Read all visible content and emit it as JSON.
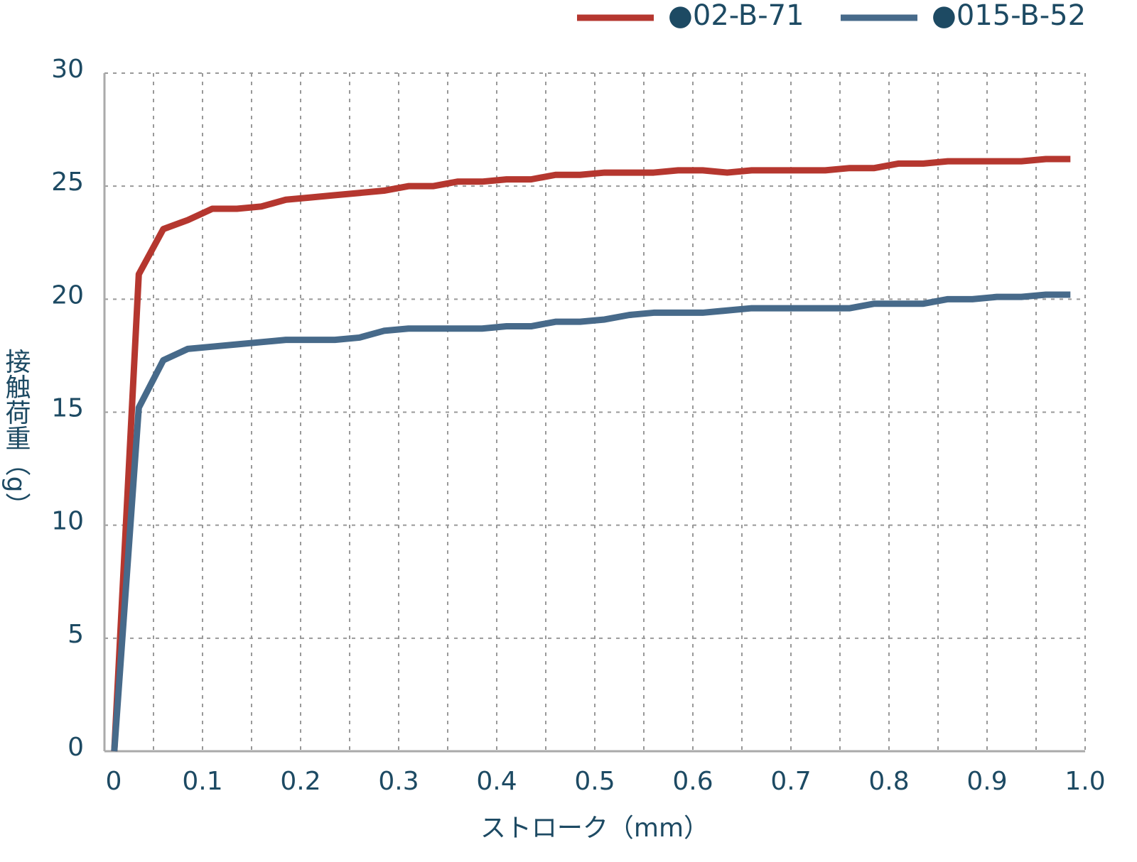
{
  "chart_data": {
    "type": "line",
    "x_label": "ストローク（mm）",
    "y_label": "接触荷重（g）",
    "x": [
      0.01,
      0.035,
      0.06,
      0.085,
      0.11,
      0.135,
      0.16,
      0.185,
      0.21,
      0.235,
      0.26,
      0.285,
      0.31,
      0.335,
      0.36,
      0.385,
      0.41,
      0.435,
      0.46,
      0.485,
      0.51,
      0.535,
      0.56,
      0.585,
      0.61,
      0.635,
      0.66,
      0.685,
      0.71,
      0.735,
      0.76,
      0.785,
      0.81,
      0.835,
      0.86,
      0.885,
      0.91,
      0.935,
      0.96,
      0.985
    ],
    "series": [
      {
        "name": "●02-B-71",
        "color": "#b5372f",
        "values": [
          0,
          21.1,
          23.1,
          23.5,
          24.0,
          24.0,
          24.1,
          24.4,
          24.5,
          24.6,
          24.7,
          24.8,
          25.0,
          25.0,
          25.2,
          25.2,
          25.3,
          25.3,
          25.5,
          25.5,
          25.6,
          25.6,
          25.6,
          25.7,
          25.7,
          25.6,
          25.7,
          25.7,
          25.7,
          25.7,
          25.8,
          25.8,
          26.0,
          26.0,
          26.1,
          26.1,
          26.1,
          26.1,
          26.2,
          26.2
        ]
      },
      {
        "name": "●015-B-52",
        "color": "#476a8a",
        "values": [
          0,
          15.2,
          17.3,
          17.8,
          17.9,
          18.0,
          18.1,
          18.2,
          18.2,
          18.2,
          18.3,
          18.6,
          18.7,
          18.7,
          18.7,
          18.7,
          18.8,
          18.8,
          19.0,
          19.0,
          19.1,
          19.3,
          19.4,
          19.4,
          19.4,
          19.5,
          19.6,
          19.6,
          19.6,
          19.6,
          19.6,
          19.8,
          19.8,
          19.8,
          20.0,
          20.0,
          20.1,
          20.1,
          20.2,
          20.2
        ]
      }
    ],
    "xlim": [
      0,
      1
    ],
    "ylim": [
      0,
      30
    ],
    "xticks": [
      0,
      0.1,
      0.2,
      0.3,
      0.4,
      0.5,
      0.6,
      0.7,
      0.8,
      0.9,
      {
        "value": 1,
        "label": "1.0"
      }
    ],
    "x_minor_ticks": [
      0.05,
      0.15,
      0.25,
      0.35,
      0.45,
      0.55,
      0.65,
      0.75,
      0.85,
      0.95
    ],
    "yticks": [
      0,
      5,
      10,
      15,
      20,
      25,
      30
    ],
    "grid": true,
    "legend": "top-right"
  }
}
